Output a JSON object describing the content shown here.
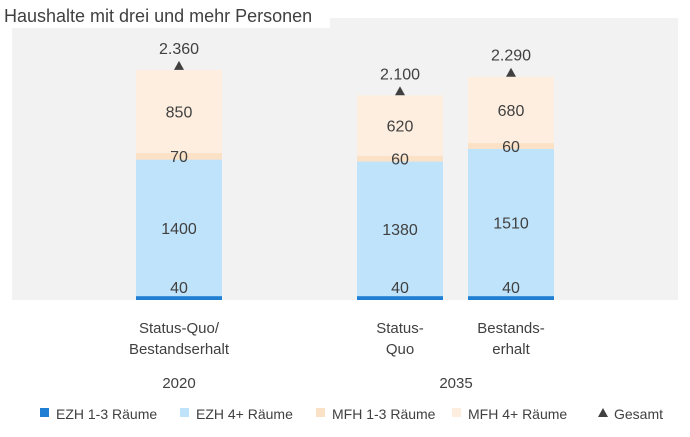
{
  "chart_data": {
    "type": "bar",
    "stacked": true,
    "title": "Haushalte mit drei und mehr Personen",
    "categories": [
      {
        "label_lines": [
          "Status-Quo/",
          "Bestandserhalt"
        ],
        "group": "2020"
      },
      {
        "label_lines": [
          "Status-",
          "Quo"
        ],
        "group": "2035"
      },
      {
        "label_lines": [
          "Bestands-",
          "erhalt"
        ],
        "group": "2035"
      }
    ],
    "groups": [
      "2020",
      "2035"
    ],
    "series": [
      {
        "name": "EZH 1-3 Räume",
        "color": "#1f7fd2",
        "values": [
          40,
          40,
          40
        ]
      },
      {
        "name": "EZH 4+ Räume",
        "color": "#bfe3fa",
        "values": [
          1400,
          1380,
          1510
        ]
      },
      {
        "name": "MFH 1-3 Räume",
        "color": "#fbe1c6",
        "values": [
          70,
          60,
          60
        ]
      },
      {
        "name": "MFH 4+ Räume",
        "color": "#fdeee0",
        "values": [
          850,
          620,
          680
        ]
      }
    ],
    "total": {
      "name": "Gesamt",
      "marker": "triangle",
      "color": "#404040",
      "values": [
        2360,
        2100,
        2290
      ],
      "labels": [
        "2.360",
        "2.100",
        "2.290"
      ]
    },
    "ylim": [
      0,
      2500
    ],
    "grid": false,
    "legend_position": "bottom",
    "plot_background": "#f2f2f2"
  }
}
